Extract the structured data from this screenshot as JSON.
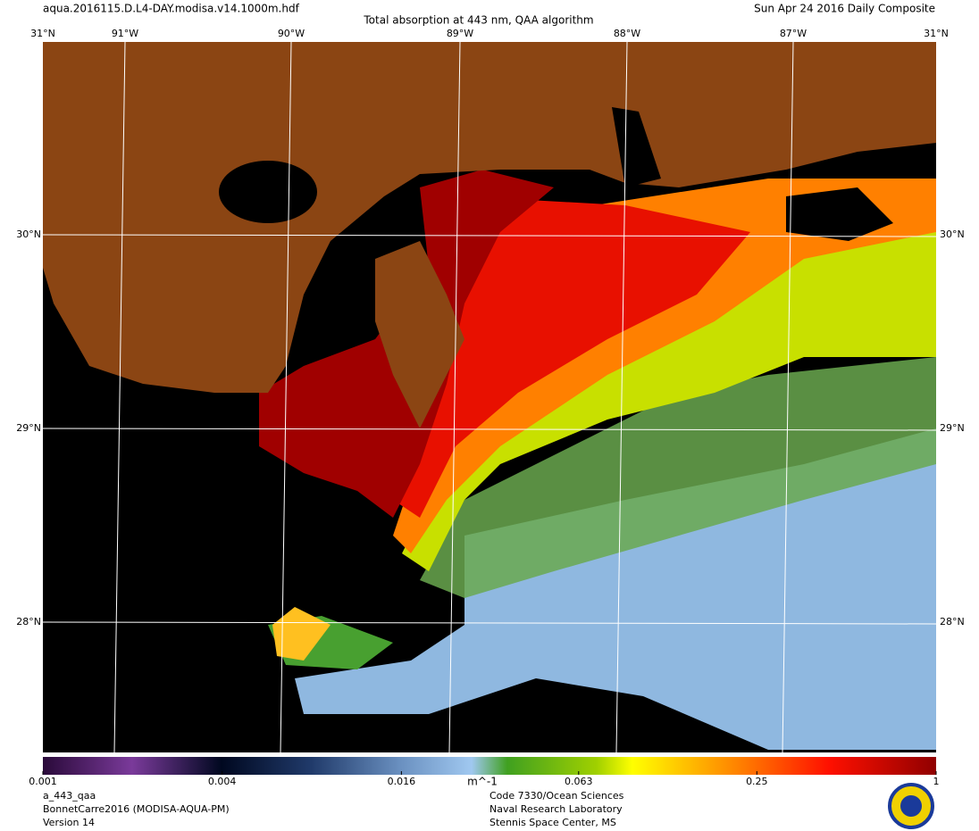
{
  "header": {
    "filename": "aqua.2016115.D.L4-DAY.modisa.v14.1000m.hdf",
    "title": "Total absorption at 443 nm, QAA algorithm",
    "date": "Sun Apr 24 2016 Daily Composite"
  },
  "map": {
    "top_labels": [
      "31°N",
      "91°W",
      "90°W",
      "89°W",
      "88°W",
      "87°W",
      "31°N"
    ],
    "left_labels": [
      "30°N",
      "29°N",
      "28°N"
    ],
    "right_labels": [
      "30°N",
      "29°N",
      "28°N"
    ]
  },
  "colorbar": {
    "min": 0.001,
    "max": 1,
    "scale": "log",
    "ticks": [
      0.001,
      0.004,
      0.016,
      0.063,
      0.25,
      1
    ],
    "unit": "m^-1"
  },
  "footer": {
    "left": [
      "a_443_qaa",
      "BonnetCarre2016 (MODISA-AQUA-PM)",
      "Version 14"
    ],
    "right": [
      "Code 7330/Ocean Sciences",
      "Naval Research Laboratory",
      "Stennis Space Center, MS"
    ]
  }
}
